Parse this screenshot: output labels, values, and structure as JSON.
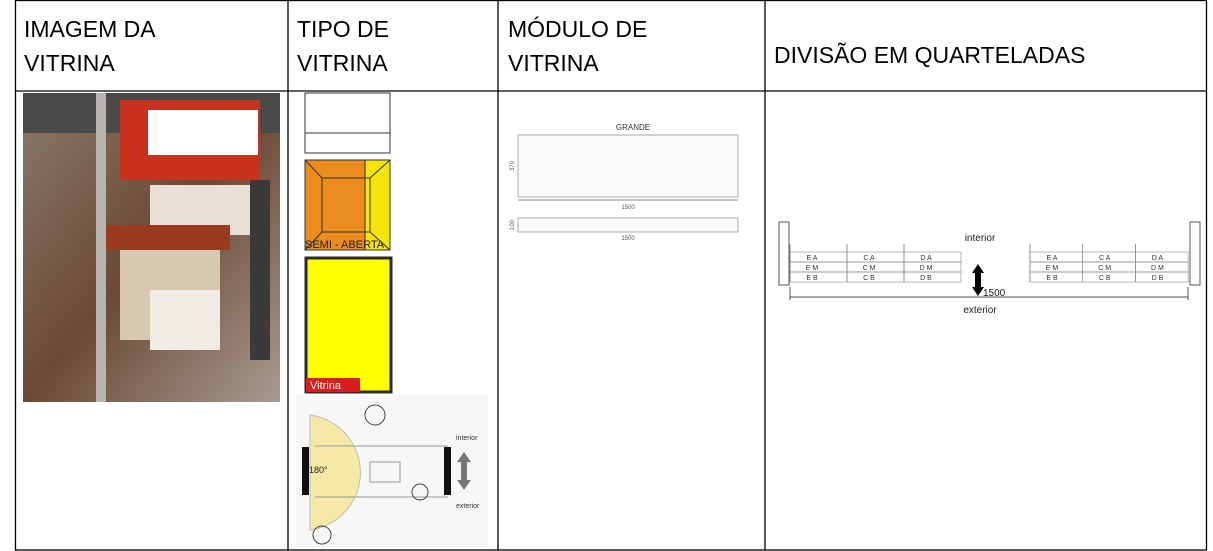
{
  "table": {
    "header": [
      "IMAGEM DA VITRINA",
      "TIPO DE VITRINA",
      "MÓDULO DE VITRINA",
      "DIVISÃO EM QUARTELADAS"
    ]
  },
  "tipo": {
    "type_label": "SEMI - ABERTA",
    "window_label": "Vitrina",
    "angle": "180°",
    "interior": "interior",
    "exterior": "exterior"
  },
  "modulo": {
    "title": "GRANDE",
    "large": {
      "height": "370",
      "width": "1500"
    },
    "small": {
      "height": "100",
      "width": "1500"
    }
  },
  "divisao": {
    "interior": "interior",
    "exterior": "exterior",
    "depth": "1500",
    "grid": [
      [
        "E A",
        "C A",
        "D A",
        "E A",
        "C A",
        "D A"
      ],
      [
        "E M",
        "C M",
        "D M",
        "E M",
        "C M",
        "D M"
      ],
      [
        "E B",
        "C B",
        "D B",
        "E B",
        "C B",
        "D B"
      ]
    ]
  }
}
